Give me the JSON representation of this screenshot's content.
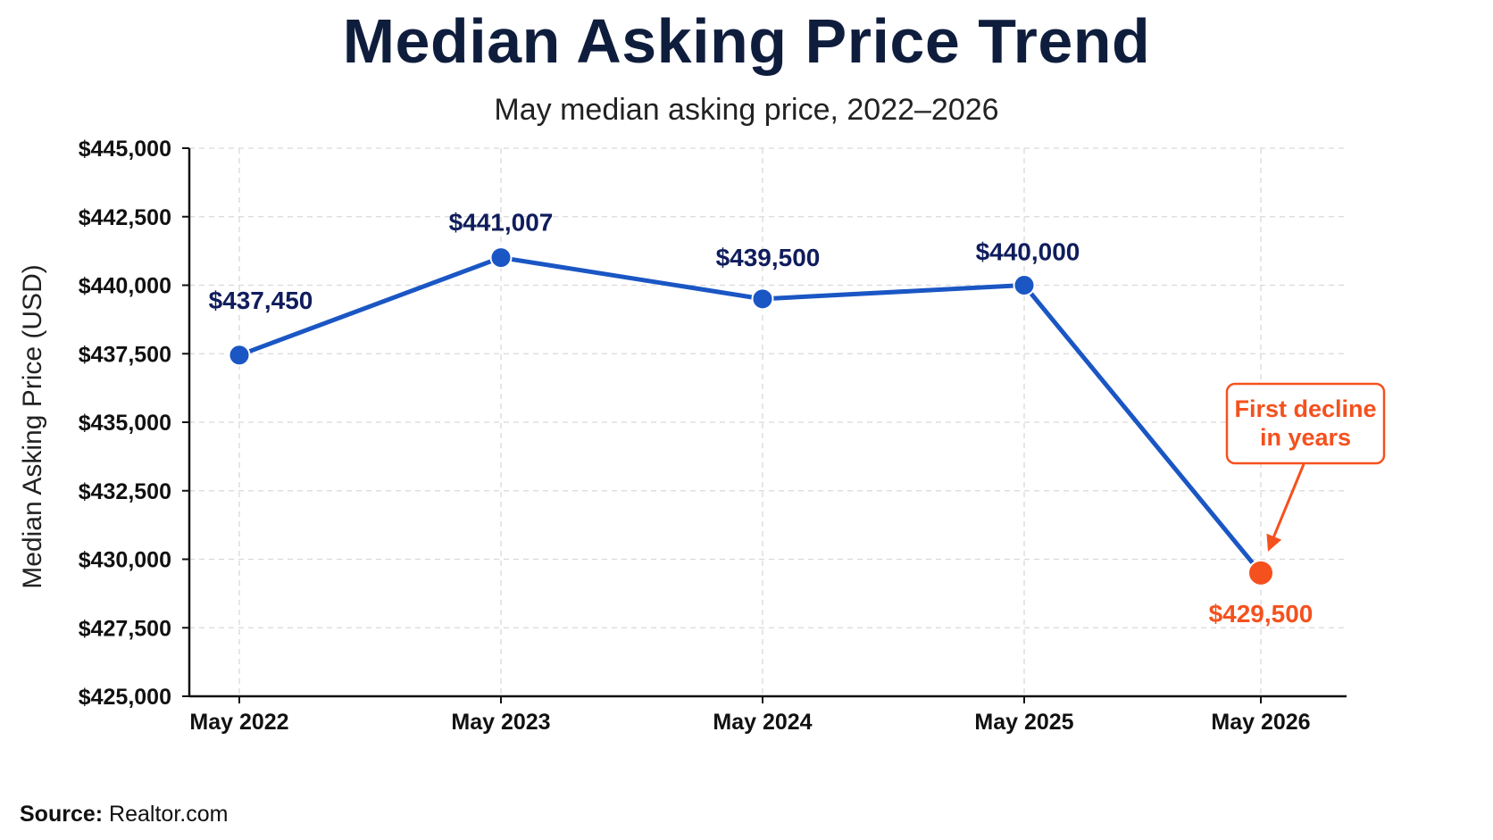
{
  "chart_data": {
    "type": "line",
    "title": "Median Asking Price Trend",
    "subtitle": "May median asking price, 2022–2026",
    "ylabel": "Median Asking Price (USD)",
    "xlabel": "",
    "categories": [
      "May 2022",
      "May 2023",
      "May 2024",
      "May 2025",
      "May 2026"
    ],
    "series": [
      {
        "values": [
          437450,
          441007,
          439500,
          440000,
          429500
        ],
        "labels": [
          "$437,450",
          "$441,007",
          "$439,500",
          "$440,000",
          "$429,500"
        ]
      }
    ],
    "ylim": [
      425000,
      445000
    ],
    "yticks": [
      425000,
      427500,
      430000,
      432500,
      435000,
      437500,
      440000,
      442500,
      445000
    ],
    "ytick_labels": [
      "$425,000",
      "$427,500",
      "$430,000",
      "$432,500",
      "$435,000",
      "$437,500",
      "$440,000",
      "$442,500",
      "$445,000"
    ],
    "grid": true,
    "colors": {
      "line": "#1a56c4",
      "highlight": "#f4511e",
      "label": "#0f1d5c"
    },
    "highlight_index": 4,
    "annotation": {
      "lines": [
        "First decline",
        "in years"
      ],
      "target_index": 4
    }
  },
  "source": {
    "label": "Source:",
    "text": "Realtor.com"
  }
}
